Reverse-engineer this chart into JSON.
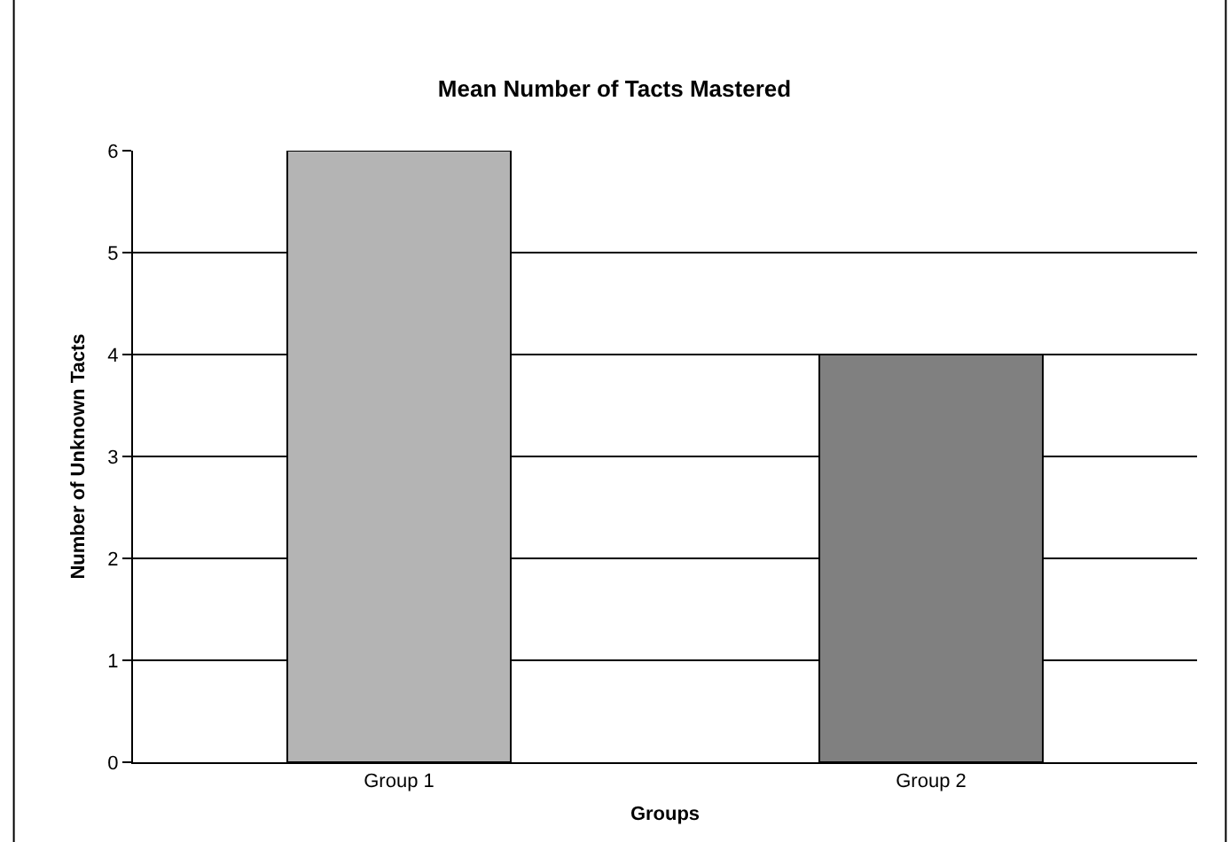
{
  "chart_data": {
    "type": "bar",
    "title": "Mean Number of Tacts Mastered",
    "xlabel": "Groups",
    "ylabel": "Number of Unknown Tacts",
    "categories": [
      "Group 1",
      "Group 2"
    ],
    "values": [
      6,
      4
    ],
    "colors": [
      "#b4b4b4",
      "#808080"
    ],
    "ylim": [
      0,
      6
    ],
    "yticks": [
      0,
      1,
      2,
      3,
      4,
      5,
      6
    ],
    "grid": "y",
    "legend": false
  }
}
